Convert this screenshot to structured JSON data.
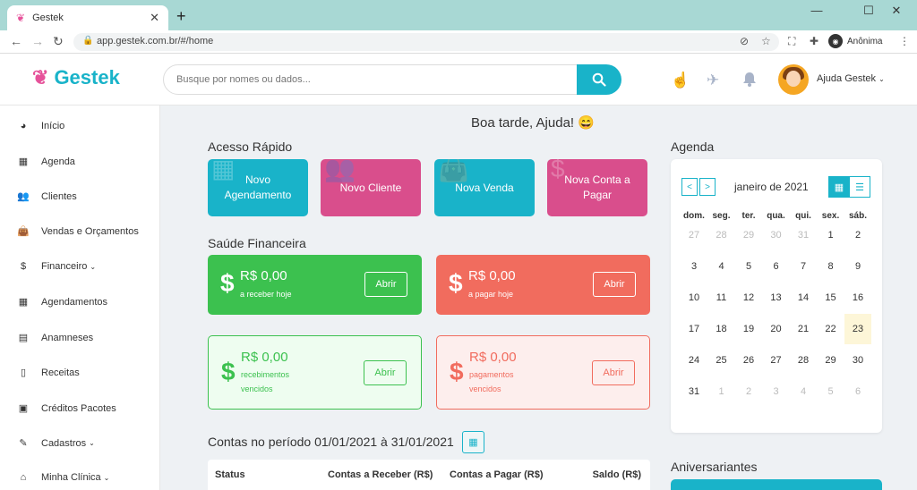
{
  "browser": {
    "tab_title": "Gestek",
    "url": "app.gestek.com.br/#/home",
    "profile_label": "Anônima"
  },
  "header": {
    "logo_text": "Gestek",
    "search_placeholder": "Busque por nomes ou dados...",
    "user_name": "Ajuda Gestek"
  },
  "sidebar": {
    "items": [
      {
        "label": "Início",
        "icon": "dashboard-icon"
      },
      {
        "label": "Agenda",
        "icon": "calendar-icon"
      },
      {
        "label": "Clientes",
        "icon": "users-icon"
      },
      {
        "label": "Vendas e Orçamentos",
        "icon": "shopping-bag-icon"
      },
      {
        "label": "Financeiro",
        "icon": "dollar-icon"
      },
      {
        "label": "Agendamentos",
        "icon": "calendar-icon"
      },
      {
        "label": "Anamneses",
        "icon": "id-card-icon"
      },
      {
        "label": "Receitas",
        "icon": "file-icon"
      },
      {
        "label": "Créditos Pacotes",
        "icon": "clipboard-icon"
      },
      {
        "label": "Cadastros",
        "icon": "edit-icon"
      },
      {
        "label": "Minha Clínica",
        "icon": "home-icon"
      }
    ]
  },
  "main": {
    "greeting": "Boa tarde, Ajuda!",
    "quick_access": {
      "title": "Acesso Rápido",
      "buttons": [
        {
          "label": "Novo Agendamento",
          "color": "#19b3c9"
        },
        {
          "label": "Novo Cliente",
          "color": "#d94e8c"
        },
        {
          "label": "Nova Venda",
          "color": "#19b3c9"
        },
        {
          "label": "Nova Conta a Pagar",
          "color": "#d94e8c"
        }
      ]
    },
    "finance": {
      "title": "Saúde Financeira",
      "cards": [
        {
          "amount": "R$ 0,00",
          "label": "a receber hoje",
          "button": "Abrir"
        },
        {
          "amount": "R$ 0,00",
          "label": "a pagar hoje",
          "button": "Abrir"
        },
        {
          "amount": "R$ 0,00",
          "label_line1": "recebimentos",
          "label_line2": "vencidos",
          "button": "Abrir"
        },
        {
          "amount": "R$ 0,00",
          "label_line1": "pagamentos",
          "label_line2": "vencidos",
          "button": "Abrir"
        }
      ]
    },
    "contas": {
      "title": "Contas no período 01/01/2021 à 31/01/2021",
      "columns": [
        "Status",
        "Contas a Receber (R$)",
        "Contas a Pagar (R$)",
        "Saldo (R$)"
      ]
    }
  },
  "agenda": {
    "title": "Agenda",
    "month": "janeiro de 2021",
    "prev": "<",
    "next": ">",
    "weekdays": [
      "dom.",
      "seg.",
      "ter.",
      "qua.",
      "qui.",
      "sex.",
      "sáb."
    ],
    "weeks": [
      [
        "27",
        "28",
        "29",
        "30",
        "31",
        "1",
        "2"
      ],
      [
        "3",
        "4",
        "5",
        "6",
        "7",
        "8",
        "9"
      ],
      [
        "10",
        "11",
        "12",
        "13",
        "14",
        "15",
        "16"
      ],
      [
        "17",
        "18",
        "19",
        "20",
        "21",
        "22",
        "23"
      ],
      [
        "24",
        "25",
        "26",
        "27",
        "28",
        "29",
        "30"
      ],
      [
        "31",
        "1",
        "2",
        "3",
        "4",
        "5",
        "6"
      ]
    ],
    "today": "23",
    "birthdays_title": "Aniversariantes"
  },
  "colors": {
    "brand": "#19b3c9",
    "pink": "#d94e8c",
    "green": "#3cc14f",
    "red": "#f16c5e"
  }
}
